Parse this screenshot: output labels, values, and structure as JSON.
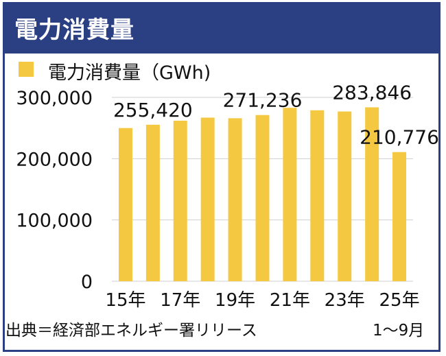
{
  "header": {
    "title": "電力消費量"
  },
  "legend": {
    "label": "電力消費量（GWh)",
    "color": "#f5c842"
  },
  "chart_data": {
    "type": "bar",
    "title": "電力消費量",
    "categories": [
      "2015",
      "2016",
      "2017",
      "2018",
      "2019",
      "2020",
      "2021",
      "2022",
      "2023",
      "2024",
      "2025 (1〜9月)"
    ],
    "series": [
      {
        "name": "電力消費量（GWh)",
        "values": [
          250000,
          255420,
          262000,
          267000,
          266000,
          271236,
          283000,
          279000,
          277000,
          283846,
          210776
        ]
      }
    ],
    "ylim": [
      0,
      300000
    ],
    "y_ticks": [
      "300,000",
      "200,000",
      "100,000",
      "0"
    ],
    "x_tick_labels": [
      "15年",
      "17年",
      "19年",
      "21年",
      "23年",
      "25年"
    ],
    "data_labels": [
      {
        "index": 1,
        "text": "255,420"
      },
      {
        "index": 5,
        "text": "271,236"
      },
      {
        "index": 9,
        "text": "283,846"
      },
      {
        "index": 10,
        "text": "210,776"
      }
    ],
    "grid": true,
    "legend_position": "top-left",
    "bar_color": "#f5c842"
  },
  "footer": {
    "source": "出典＝経済部エネルギー署リリース",
    "sub_note": "1〜9月"
  }
}
